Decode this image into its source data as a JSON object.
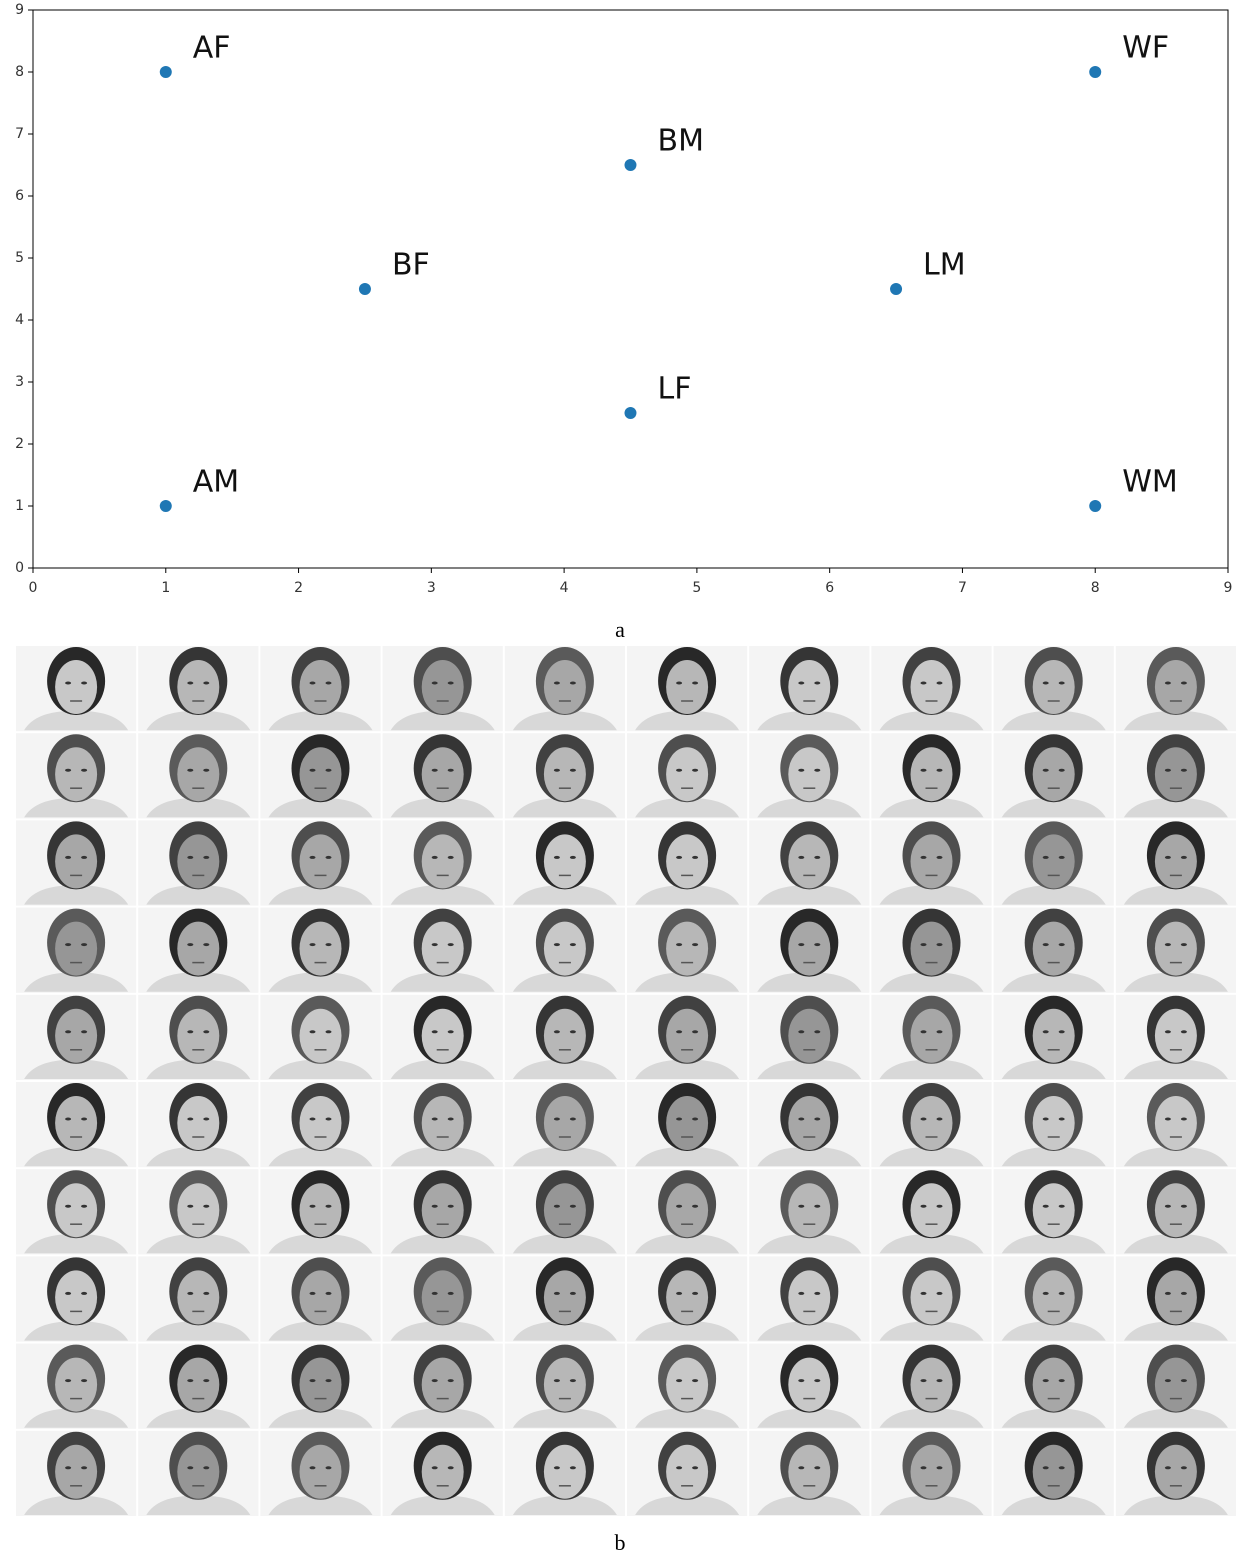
{
  "chart_data": {
    "type": "scatter",
    "x": [
      1,
      8,
      4.5,
      2.5,
      6.5,
      4.5,
      1,
      8
    ],
    "y": [
      8,
      8,
      6.5,
      4.5,
      4.5,
      2.5,
      1,
      1
    ],
    "point_labels": [
      "AF",
      "WF",
      "BM",
      "BF",
      "LM",
      "LF",
      "AM",
      "WM"
    ],
    "color": "#1f77b4",
    "xlim": [
      0,
      9
    ],
    "ylim": [
      0,
      9
    ],
    "xticks": [
      0,
      1,
      2,
      3,
      4,
      5,
      6,
      7,
      8,
      9
    ],
    "yticks": [
      0,
      1,
      2,
      3,
      4,
      5,
      6,
      7,
      8,
      9
    ]
  },
  "captions": [
    "a",
    "b"
  ]
}
